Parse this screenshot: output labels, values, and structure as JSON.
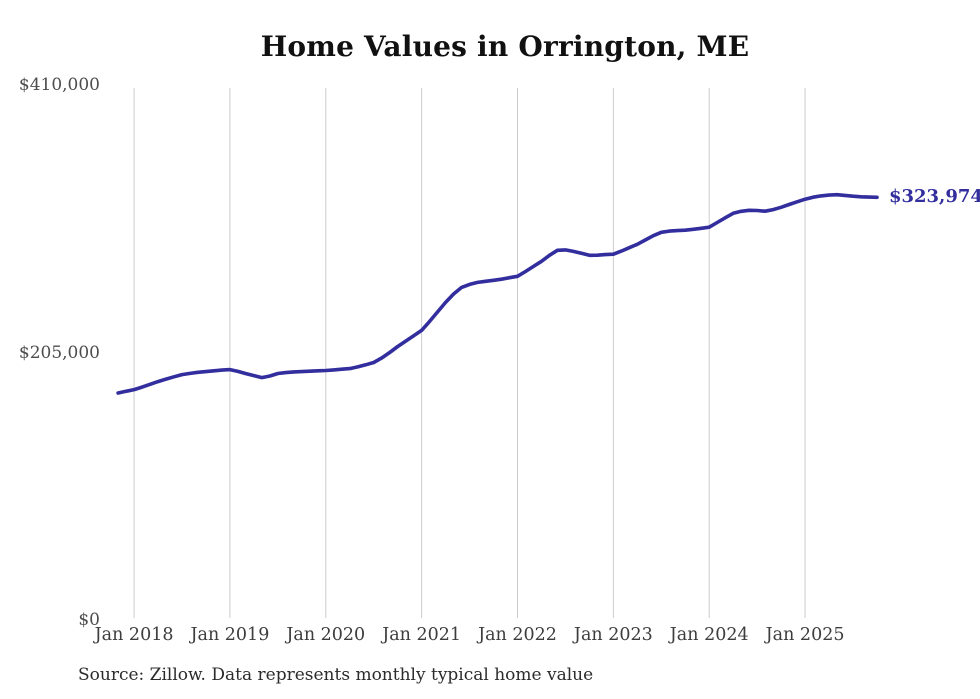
{
  "chart_data": {
    "type": "line",
    "title": "Home Values in Orrington, ME",
    "source_note": "Source: Zillow. Data represents monthly typical home value",
    "xlabel": "",
    "ylabel": "",
    "ylim": [
      0,
      410000
    ],
    "grid": "vertical-only",
    "legend_position": "none",
    "end_label": "$323,974",
    "end_value": 323974,
    "y_ticks": [
      {
        "value": 410000,
        "label": "$410,000"
      },
      {
        "value": 205000,
        "label": "$205,000"
      },
      {
        "value": 0,
        "label": "$0"
      }
    ],
    "x_ticks": [
      "Jan 2018",
      "Jan 2019",
      "Jan 2020",
      "Jan 2021",
      "Jan 2022",
      "Jan 2023",
      "Jan 2024",
      "Jan 2025"
    ],
    "x": [
      "Nov 2017",
      "Dec 2017",
      "Jan 2018",
      "Feb 2018",
      "Mar 2018",
      "Apr 2018",
      "May 2018",
      "Jun 2018",
      "Jul 2018",
      "Aug 2018",
      "Sep 2018",
      "Oct 2018",
      "Nov 2018",
      "Dec 2018",
      "Jan 2019",
      "Feb 2019",
      "Mar 2019",
      "Apr 2019",
      "May 2019",
      "Jun 2019",
      "Jul 2019",
      "Aug 2019",
      "Sep 2019",
      "Oct 2019",
      "Nov 2019",
      "Dec 2019",
      "Jan 2020",
      "Feb 2020",
      "Mar 2020",
      "Apr 2020",
      "May 2020",
      "Jun 2020",
      "Jul 2020",
      "Aug 2020",
      "Sep 2020",
      "Oct 2020",
      "Nov 2020",
      "Dec 2020",
      "Jan 2021",
      "Feb 2021",
      "Mar 2021",
      "Apr 2021",
      "May 2021",
      "Jun 2021",
      "Jul 2021",
      "Aug 2021",
      "Sep 2021",
      "Oct 2021",
      "Nov 2021",
      "Dec 2021",
      "Jan 2022",
      "Feb 2022",
      "Mar 2022",
      "Apr 2022",
      "May 2022",
      "Jun 2022",
      "Jul 2022",
      "Aug 2022",
      "Sep 2022",
      "Oct 2022",
      "Nov 2022",
      "Dec 2022",
      "Jan 2023",
      "Feb 2023",
      "Mar 2023",
      "Apr 2023",
      "May 2023",
      "Jun 2023",
      "Jul 2023",
      "Aug 2023",
      "Sep 2023",
      "Oct 2023",
      "Nov 2023",
      "Dec 2023",
      "Jan 2024",
      "Feb 2024",
      "Mar 2024",
      "Apr 2024",
      "May 2024",
      "Jun 2024",
      "Jul 2024",
      "Aug 2024",
      "Sep 2024",
      "Oct 2024",
      "Nov 2024",
      "Dec 2024",
      "Jan 2025",
      "Feb 2025",
      "Mar 2025",
      "Apr 2025",
      "May 2025",
      "Jun 2025",
      "Jul 2025",
      "Aug 2025",
      "Sep 2025",
      "Oct 2025"
    ],
    "series": [
      {
        "name": "Monthly typical home value",
        "color": "#332E9E",
        "values": [
          174000,
          175300,
          176600,
          178500,
          180600,
          182700,
          184600,
          186400,
          188100,
          189000,
          189800,
          190400,
          191000,
          191500,
          191900,
          190500,
          188800,
          187300,
          185800,
          187000,
          188900,
          189600,
          190100,
          190400,
          190700,
          191000,
          191200,
          191700,
          192200,
          192700,
          194000,
          195600,
          197300,
          200800,
          205000,
          209600,
          213700,
          217800,
          221900,
          228800,
          236100,
          243400,
          249800,
          254900,
          257200,
          258700,
          259600,
          260300,
          261200,
          262300,
          263400,
          267100,
          271000,
          274900,
          279500,
          283300,
          283600,
          282500,
          281000,
          279500,
          279600,
          280000,
          280300,
          282700,
          285300,
          287900,
          291200,
          294500,
          297100,
          298000,
          298400,
          298700,
          299400,
          300200,
          301000,
          304600,
          308200,
          311700,
          313200,
          314000,
          313800,
          313300,
          314500,
          316300,
          318400,
          320500,
          322500,
          324000,
          325000,
          325600,
          325900,
          325400,
          324800,
          324300,
          324100,
          323974
        ]
      }
    ]
  },
  "colors": {
    "line": "#332E9E",
    "grid": "#cccccc",
    "title_text": "#111111",
    "axis_text": "#4d4d4d",
    "source_text": "#2b2b2b",
    "background": "#ffffff"
  }
}
